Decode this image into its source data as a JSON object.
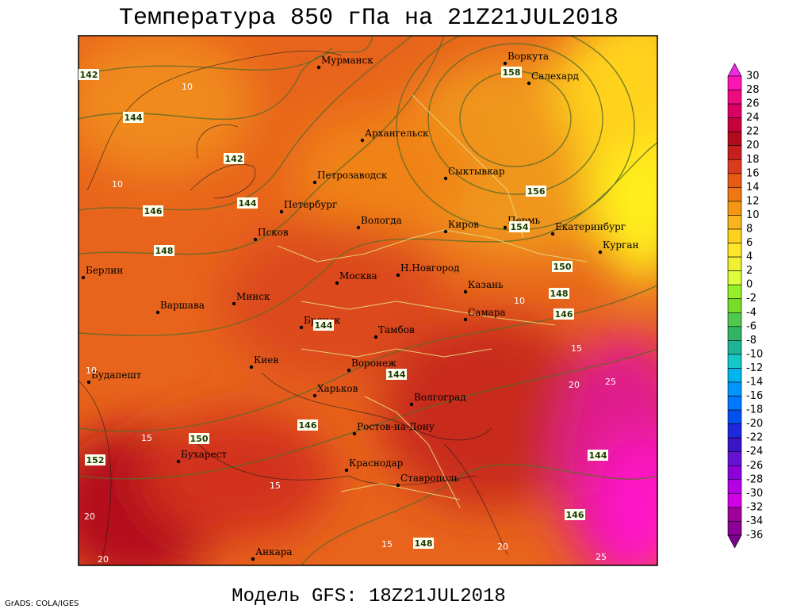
{
  "header": {
    "title": "Температура 850 гПа на 21Z21JUL2018"
  },
  "footer": {
    "model": "Модель GFS: 18Z21JUL2018",
    "credit": "GrADS: COLA/IGES"
  },
  "cities": [
    "Мурманск",
    "Воркута",
    "Салехард",
    "Архангельск",
    "Петрозаводск",
    "Сыктывкар",
    "Петербург",
    "Псков",
    "Вологда",
    "Киров",
    "Пермь",
    "Екатеринбург",
    "Курган",
    "Берлин",
    "Н.Новгород",
    "Москва",
    "Казань",
    "Варшава",
    "Минск",
    "Самара",
    "Брянск",
    "Тамбов",
    "Киев",
    "Воронеж",
    "Будапешт",
    "Харьков",
    "Волгоград",
    "Ростов-на-Дону",
    "Бухарест",
    "Краснодар",
    "Ставрополь",
    "Анкара"
  ],
  "geopotential_labels": [
    142,
    144,
    142,
    146,
    144,
    148,
    158,
    156,
    154,
    150,
    148,
    146,
    144,
    144,
    146,
    150,
    152,
    144,
    146,
    148
  ],
  "isotherm_labels": [
    10,
    10,
    10,
    15,
    20,
    25,
    15,
    15,
    15,
    20,
    25,
    20,
    20,
    10
  ],
  "colorbar": {
    "ticks": [
      30,
      28,
      26,
      24,
      22,
      20,
      18,
      16,
      14,
      12,
      10,
      8,
      6,
      4,
      2,
      0,
      -2,
      -4,
      -6,
      -8,
      -10,
      -12,
      -14,
      -16,
      -18,
      -20,
      -22,
      -24,
      -26,
      -28,
      -30,
      -32,
      -34,
      -36
    ],
    "colors": [
      "#f028e6",
      "#ff14b4",
      "#f00a82",
      "#dc0064",
      "#c8003c",
      "#b40a1e",
      "#c81e1e",
      "#dc3c1e",
      "#e65a14",
      "#f07814",
      "#f59614",
      "#fab41e",
      "#ffd21e",
      "#ffe628",
      "#f0f032",
      "#dcff3c",
      "#96f028",
      "#78dc28",
      "#50c850",
      "#32b464",
      "#1eb496",
      "#14c8c8",
      "#00b4f0",
      "#0096ff",
      "#0078ff",
      "#0050f0",
      "#1e28dc",
      "#3c14c8",
      "#6414d2",
      "#8c00dc",
      "#b400e6",
      "#d200e6",
      "#a0009a",
      "#8c0096",
      "#78008c"
    ]
  }
}
